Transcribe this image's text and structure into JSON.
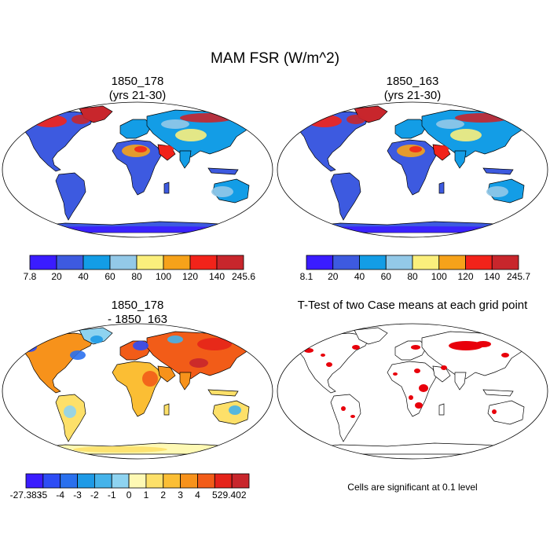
{
  "title": "MAM FSR (W/m^2)",
  "panels": [
    {
      "name": "case1",
      "title_line1": "1850_178",
      "title_line2": "(yrs 21-30)",
      "colorbar": {
        "labels": [
          "7.8",
          "20",
          "40",
          "60",
          "80",
          "100",
          "120",
          "140",
          "245.6"
        ],
        "colors": [
          "#3a1cff",
          "#3d5ae0",
          "#139de6",
          "#93c9e8",
          "#fbef7c",
          "#f6a21a",
          "#f2231a",
          "#c8262c"
        ]
      }
    },
    {
      "name": "case2",
      "title_line1": "1850_163",
      "title_line2": "(yrs 21-30)",
      "colorbar": {
        "labels": [
          "8.1",
          "20",
          "40",
          "60",
          "80",
          "100",
          "120",
          "140",
          "245.7"
        ],
        "colors": [
          "#3a1cff",
          "#3d5ae0",
          "#139de6",
          "#93c9e8",
          "#fbef7c",
          "#f6a21a",
          "#f2231a",
          "#c8262c"
        ]
      }
    },
    {
      "name": "difference",
      "title_line1": "1850_178",
      "title_line2": "- 1850_163",
      "colorbar": {
        "labels": [
          "-27.383",
          "-5",
          "-4",
          "-3",
          "-2",
          "-1",
          "0",
          "1",
          "2",
          "3",
          "4",
          "5",
          "29.402"
        ],
        "colors": [
          "#3a1cff",
          "#2d4cf5",
          "#2a70ee",
          "#1e9ae6",
          "#45b3ea",
          "#8ed3f0",
          "#fef9b4",
          "#fde069",
          "#fbbe34",
          "#f7921b",
          "#f25c18",
          "#e5231a",
          "#c8262c"
        ]
      }
    },
    {
      "name": "ttest",
      "title_line1": "T-Test of two Case means at each grid point",
      "note": "Cells are significant at 0.1 level",
      "significant_color": "#e8000b"
    }
  ],
  "chart_data": [
    {
      "type": "heatmap",
      "title": "1850_178 (yrs 21-30)",
      "variable": "MAM FSR (W/m^2)",
      "color_levels": [
        7.8,
        20,
        40,
        60,
        80,
        100,
        120,
        140,
        245.6
      ]
    },
    {
      "type": "heatmap",
      "title": "1850_163 (yrs 21-30)",
      "variable": "MAM FSR (W/m^2)",
      "color_levels": [
        8.1,
        20,
        40,
        60,
        80,
        100,
        120,
        140,
        245.7
      ]
    },
    {
      "type": "heatmap",
      "title": "1850_178 - 1850_163",
      "variable": "MAM FSR difference (W/m^2)",
      "color_levels": [
        -27.383,
        -5,
        -4,
        -3,
        -2,
        -1,
        0,
        1,
        2,
        3,
        4,
        5,
        29.402
      ]
    },
    {
      "type": "heatmap",
      "title": "T-Test of two Case means at each grid point",
      "annotation": "Cells are significant at 0.1 level"
    }
  ]
}
